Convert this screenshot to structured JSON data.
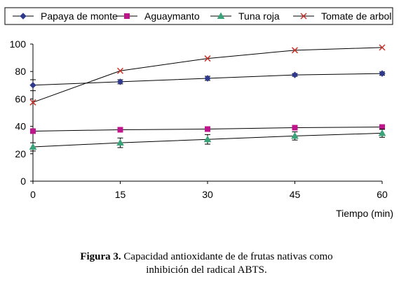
{
  "chart_data": {
    "type": "line",
    "x": [
      0,
      15,
      30,
      45,
      60
    ],
    "xlabel": "Tiempo (min)",
    "ylabel": "",
    "xlim": [
      0,
      60
    ],
    "ylim": [
      0,
      100
    ],
    "xticks": [
      0,
      15,
      30,
      45,
      60
    ],
    "yticks": [
      0,
      20,
      40,
      60,
      80,
      100
    ],
    "grid": false,
    "legend_position": "top",
    "series": [
      {
        "name": "Papaya de monte",
        "marker": "diamond",
        "color": "#2f3a8f",
        "values": [
          70,
          72.5,
          75,
          77.5,
          78.5
        ],
        "errors": [
          4,
          1.5,
          1.5,
          1,
          1.2
        ]
      },
      {
        "name": "Aguaymanto",
        "marker": "square",
        "color": "#c0148c",
        "values": [
          36.5,
          37.5,
          38,
          39,
          39.5
        ],
        "errors": [
          1,
          0.8,
          1,
          1,
          1
        ]
      },
      {
        "name": "Tuna roja",
        "marker": "triangle",
        "color": "#3aa37a",
        "values": [
          25,
          28,
          30.5,
          33,
          35
        ],
        "errors": [
          3,
          3.5,
          3.5,
          3,
          3
        ]
      },
      {
        "name": "Tomate de arbol",
        "marker": "x",
        "color": "#c8322a",
        "values": [
          57.5,
          80.5,
          89.5,
          95.5,
          97.5
        ],
        "errors": [
          0,
          0,
          0,
          0,
          0
        ]
      }
    ]
  },
  "caption": {
    "label": "Figura 3.",
    "line1": " Capacidad antioxidante de de frutas nativas como",
    "line2": "inhibición del radical ABTS."
  }
}
